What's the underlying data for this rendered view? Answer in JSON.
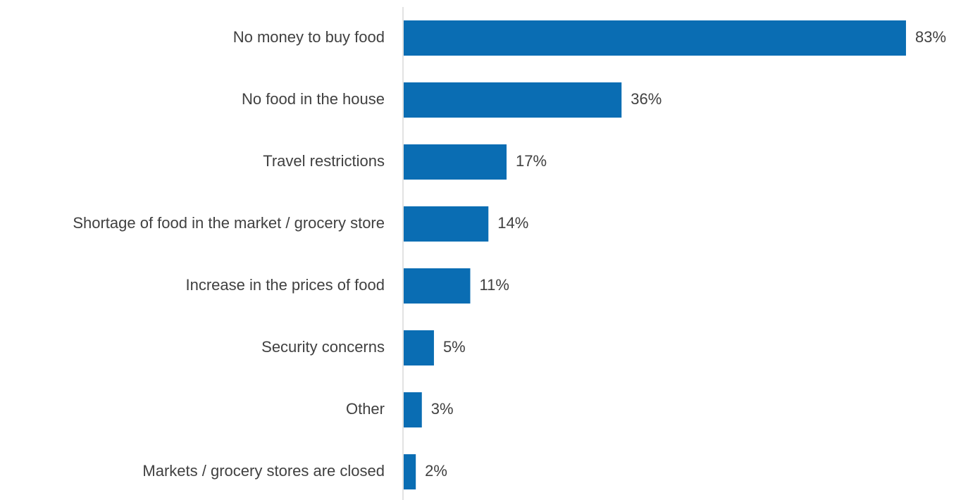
{
  "chart_data": {
    "type": "bar",
    "orientation": "horizontal",
    "title": "",
    "xlabel": "",
    "ylabel": "",
    "categories": [
      "No money to buy food",
      "No food in the house",
      "Travel restrictions",
      "Shortage of food in the market / grocery store",
      "Increase in the prices of food",
      "Security concerns",
      "Other",
      "Markets / grocery stores are closed"
    ],
    "values": [
      83,
      36,
      17,
      14,
      11,
      5,
      3,
      2
    ],
    "value_labels": [
      "83%",
      "36%",
      "17%",
      "14%",
      "11%",
      "5%",
      "3%",
      "2%"
    ],
    "unit": "%",
    "xlim": [
      0,
      100
    ],
    "grid": false,
    "legend": "none",
    "colors": {
      "bar": "#0a6db3",
      "axis": "#d9d9d9",
      "text": "#404040"
    }
  }
}
